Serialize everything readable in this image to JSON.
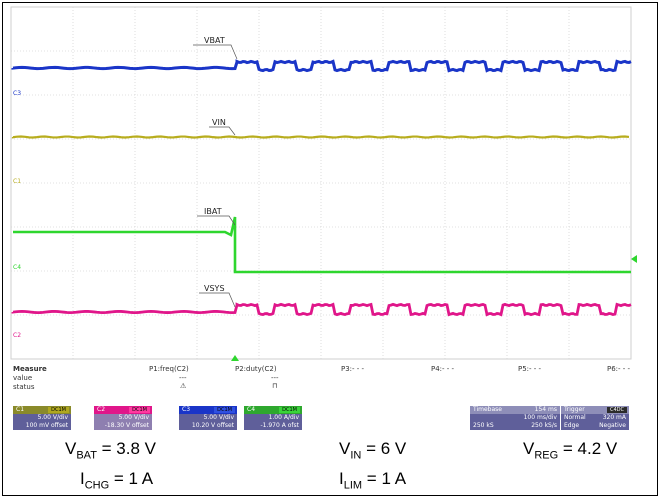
{
  "waveforms": [
    {
      "id": "vbat",
      "label": "VBAT",
      "channel_marker": "C3",
      "color": "#1a35c8"
    },
    {
      "id": "vin",
      "label": "VIN",
      "channel_marker": "C1",
      "color": "#b8ad1e"
    },
    {
      "id": "ibat",
      "label": "IBAT",
      "channel_marker": "C4",
      "color": "#2ed62e"
    },
    {
      "id": "vsys",
      "label": "VSYS",
      "channel_marker": "C2",
      "color": "#e0168a"
    }
  ],
  "measure": {
    "title": "Measure",
    "row_labels": [
      "value",
      "status"
    ],
    "columns": [
      {
        "name": "P1:freq(C2)",
        "value": "---",
        "status": "⚠"
      },
      {
        "name": "P2:duty(C2)",
        "value": "---",
        "status": "⊓"
      },
      {
        "name": "P3:- - -",
        "value": "",
        "status": ""
      },
      {
        "name": "P4:- - -",
        "value": "",
        "status": ""
      },
      {
        "name": "P5:- - -",
        "value": "",
        "status": ""
      },
      {
        "name": "P6:- - -",
        "value": "",
        "status": ""
      }
    ]
  },
  "channels": [
    {
      "name": "C1",
      "badge": "DC1M",
      "scale": "5.00 V/div",
      "offset": "100 mV offset",
      "color": "#5f5f9a",
      "hdr_color": "#8a8a2a",
      "badge_color": "#b0a820"
    },
    {
      "name": "C2",
      "badge": "DC1M",
      "scale": "5.00 V/div",
      "offset": "-18.30 V offset",
      "color": "#8e7fb0",
      "hdr_color": "#e0168a",
      "badge_color": "#ff3aa0"
    },
    {
      "name": "C3",
      "badge": "DC1M",
      "scale": "5.00 V/div",
      "offset": "10.20 V offset",
      "color": "#5f5f9a",
      "hdr_color": "#1a35c8",
      "badge_color": "#3050e0"
    },
    {
      "name": "C4",
      "badge": "DC1M",
      "scale": "1.00 A/div",
      "offset": "-1.970 A ofst",
      "color": "#5f5f9a",
      "hdr_color": "#2ea82e",
      "badge_color": "#3ad43a"
    }
  ],
  "timebase": {
    "label": "Timebase",
    "value": "154 ms",
    "scale": "100 ms/div",
    "rate_left": "250 kS",
    "rate_right": "250 kS/s"
  },
  "trigger": {
    "label": "Trigger",
    "badge": "C4DC",
    "mode": "Normal",
    "level": "320 mA",
    "type": "Edge",
    "slope": "Negative"
  },
  "captions": {
    "vbat": {
      "main": "V",
      "sub": "BAT",
      "rest": " = 3.8 V"
    },
    "vin": {
      "main": "V",
      "sub": "IN",
      "rest": " = 6 V"
    },
    "vreg": {
      "main": "V",
      "sub": "REG",
      "rest": " = 4.2 V"
    },
    "ichg": {
      "main": "I",
      "sub": "CHG",
      "rest": " = 1 A"
    },
    "ilim": {
      "main": "I",
      "sub": "LIM",
      "rest": " = 1 A"
    }
  }
}
